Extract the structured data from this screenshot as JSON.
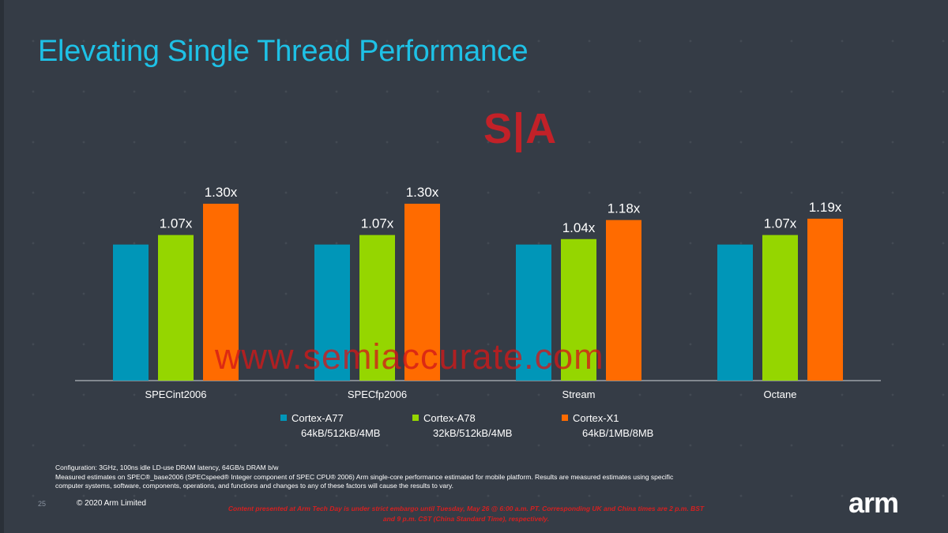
{
  "slide": {
    "title": "Elevating Single Thread Performance",
    "page_number": "25",
    "copyright": "© 2020 Arm Limited",
    "logo_text": "arm"
  },
  "watermark": {
    "logo_text": "S|A",
    "url_text": "www.semiaccurate.com"
  },
  "colors": {
    "background": "#353c46",
    "title": "#1ec1e6",
    "cortex_a77": "#0096b8",
    "cortex_a78": "#95d600",
    "cortex_x1": "#ff6b00"
  },
  "chart_data": {
    "type": "bar",
    "categories": [
      "SPECint2006",
      "SPECfp2006",
      "Stream",
      "Octane"
    ],
    "series": [
      {
        "name": "Cortex-A77",
        "spec": "64kB/512kB/4MB",
        "values": [
          1.0,
          1.0,
          1.0,
          1.0
        ],
        "labels": [
          "",
          "",
          "",
          ""
        ]
      },
      {
        "name": "Cortex-A78",
        "spec": "32kB/512kB/4MB",
        "values": [
          1.07,
          1.07,
          1.04,
          1.07
        ],
        "labels": [
          "1.07x",
          "1.07x",
          "1.04x",
          "1.07x"
        ]
      },
      {
        "name": "Cortex-X1",
        "spec": "64kB/1MB/8MB",
        "values": [
          1.3,
          1.3,
          1.18,
          1.19
        ],
        "labels": [
          "1.30x",
          "1.30x",
          "1.18x",
          "1.19x"
        ]
      }
    ],
    "ylim": [
      0,
      1.3
    ],
    "grid": false,
    "legend_position": "bottom"
  },
  "footnotes": {
    "line1": "Configuration: 3GHz, 100ns idle LD-use DRAM latency, 64GB/s DRAM b/w",
    "line2": "Measured estimates on SPEC®_base2006 (SPECspeed® Integer component of SPEC CPU® 2006) Arm single-core performance estimated for mobile platform. Results are measured estimates using specific computer systems, software, components, operations, and functions and changes to any of these factors will cause the results to vary."
  },
  "embargo": "Content presented at Arm Tech Day is under strict embargo until Tuesday, May 26 @ 6:00 a.m. PT. Corresponding UK and China times are 2 p.m. BST and 9 p.m. CST (China Standard Time), respectively."
}
